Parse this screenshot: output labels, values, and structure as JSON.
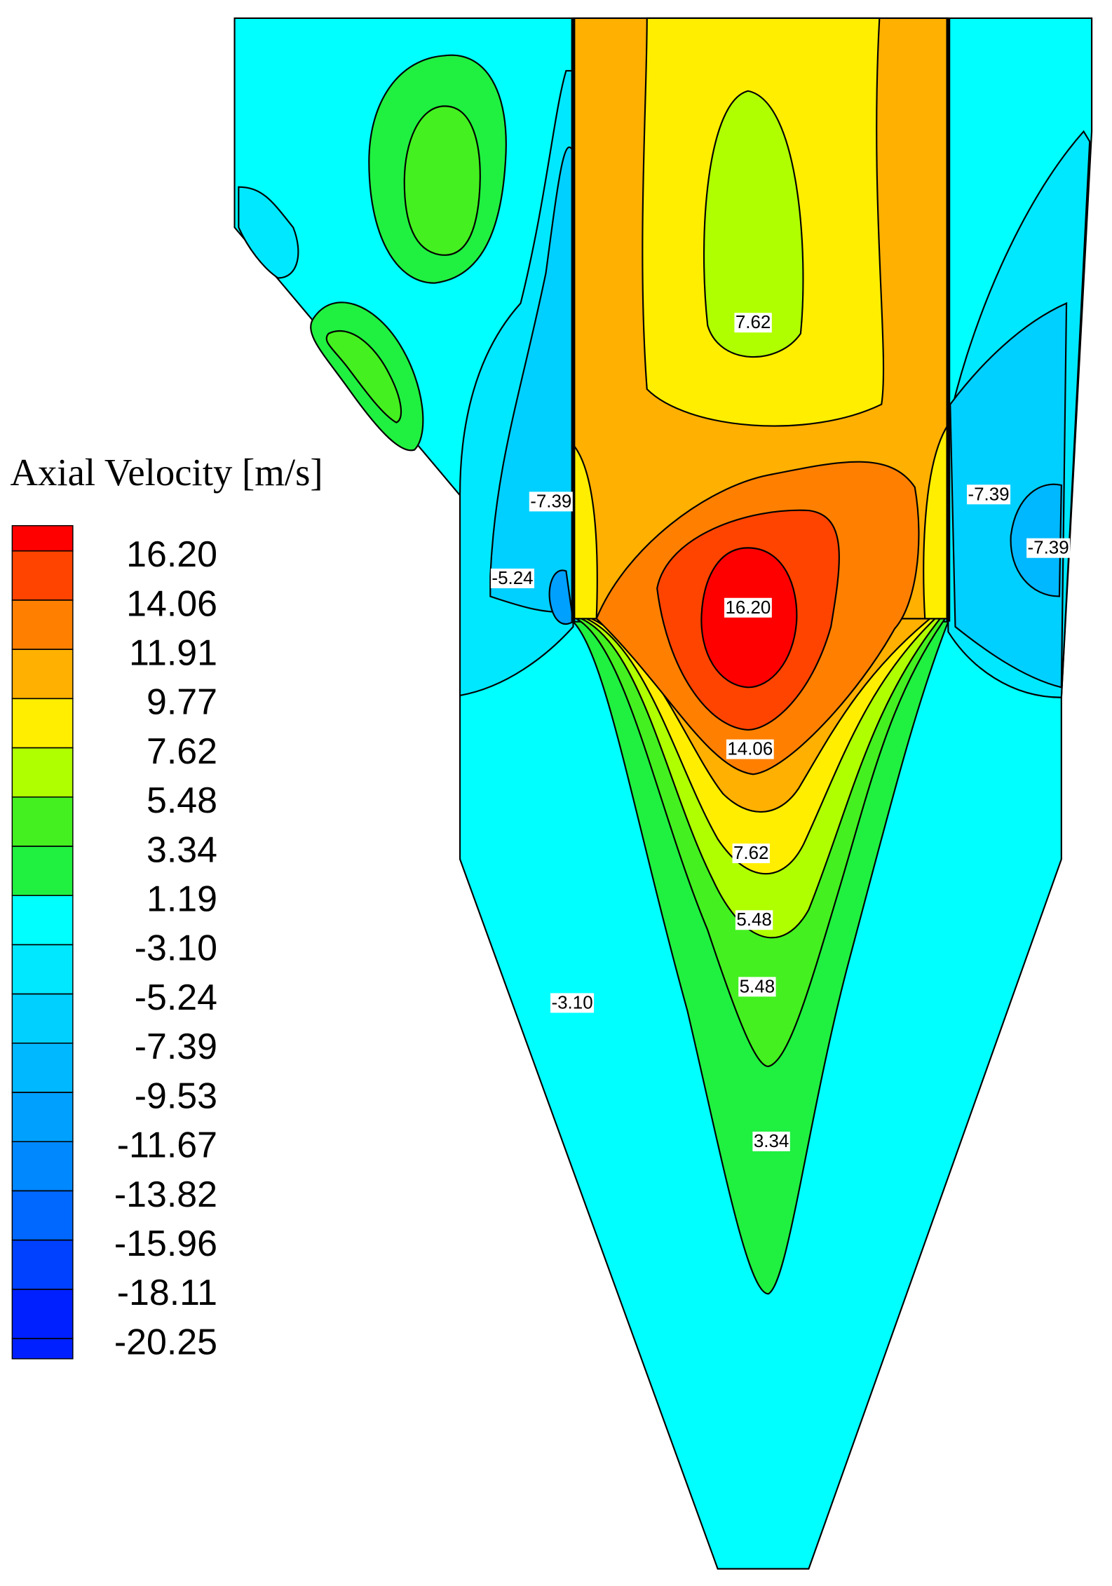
{
  "chart_data": {
    "type": "contour",
    "legend_title": "Axial Velocity [m/s]",
    "levels": [
      {
        "value": 16.2,
        "label": "16.20"
      },
      {
        "value": 14.06,
        "label": "14.06"
      },
      {
        "value": 11.91,
        "label": "11.91"
      },
      {
        "value": 9.77,
        "label": "9.77"
      },
      {
        "value": 7.62,
        "label": "7.62"
      },
      {
        "value": 5.48,
        "label": "5.48"
      },
      {
        "value": 3.34,
        "label": "3.34"
      },
      {
        "value": 1.19,
        "label": "1.19"
      },
      {
        "value": -3.1,
        "label": "-3.10"
      },
      {
        "value": -5.24,
        "label": "-5.24"
      },
      {
        "value": -7.39,
        "label": "-7.39"
      },
      {
        "value": -9.53,
        "label": "-9.53"
      },
      {
        "value": -11.67,
        "label": "-11.67"
      },
      {
        "value": -13.82,
        "label": "-13.82"
      },
      {
        "value": -15.96,
        "label": "-15.96"
      },
      {
        "value": -18.11,
        "label": "-18.11"
      },
      {
        "value": -20.25,
        "label": "-20.25"
      }
    ],
    "colors": [
      "#ff0000",
      "#ff4400",
      "#ff8000",
      "#ffb000",
      "#ffee00",
      "#b0ff00",
      "#44f020",
      "#20f040",
      "#00ffff",
      "#00e8ff",
      "#00d0ff",
      "#00b8ff",
      "#00a0ff",
      "#0088ff",
      "#0068ff",
      "#0040ff",
      "#0020ff"
    ],
    "contour_labels": {
      "values": [
        7.62,
        -7.39,
        -7.39,
        -7.39,
        -5.24,
        16.2,
        14.06,
        7.62,
        5.48,
        5.48,
        3.34,
        -3.1
      ],
      "value_labels": [
        "7.62",
        "-7.39",
        "-7.39",
        "-7.39",
        "-5.24",
        "16.20",
        "14.06",
        "7.62",
        "5.48",
        "5.48",
        "3.34",
        "-3.10"
      ]
    }
  }
}
